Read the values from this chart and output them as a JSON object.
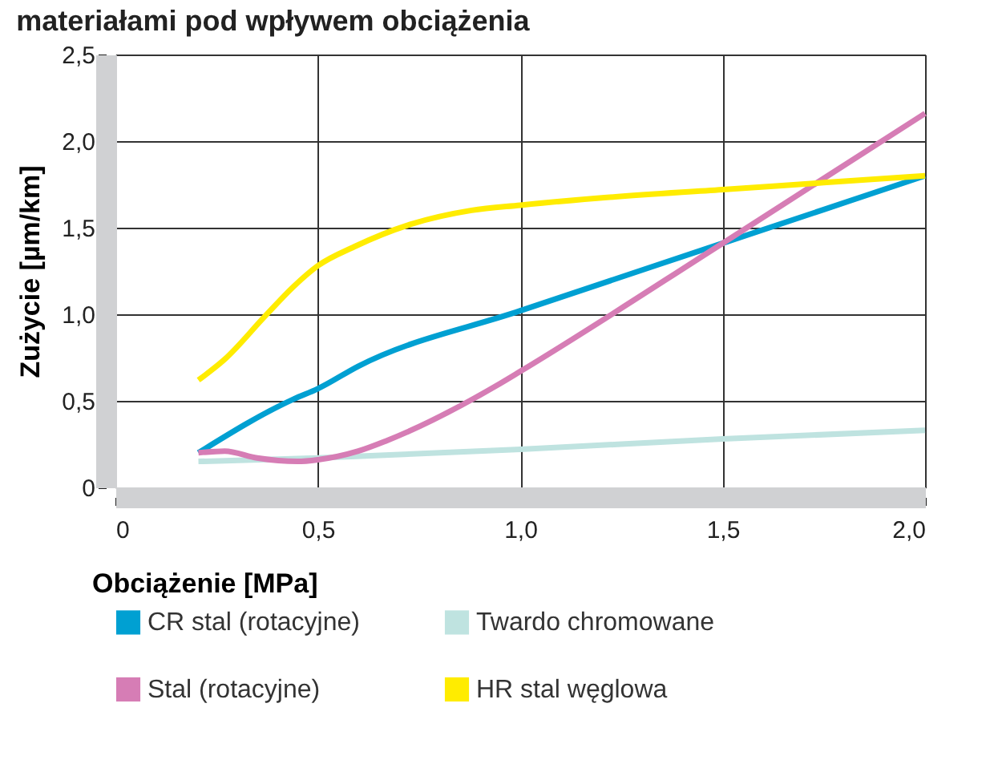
{
  "chart_data": {
    "type": "line",
    "title": "materiałami pod wpływem obciążenia",
    "xlabel": "Obciążenie [MPa]",
    "ylabel": "Zużycie [µm/km]",
    "xlim": [
      0,
      2.0
    ],
    "xticks": [
      {
        "value": 0,
        "label": "0"
      },
      {
        "value": 0.5,
        "label": "0,5"
      },
      {
        "value": 1.0,
        "label": "1,0"
      },
      {
        "value": 1.5,
        "label": "1,5"
      },
      {
        "value": 2.0,
        "label": "2,0"
      }
    ],
    "ylim": [
      0,
      2.5
    ],
    "yticks": [
      {
        "value": 0,
        "label": "0"
      },
      {
        "value": 0.5,
        "label": "0,5"
      },
      {
        "value": 1.0,
        "label": "1,0"
      },
      {
        "value": 1.5,
        "label": "1,5"
      },
      {
        "value": 2.0,
        "label": "2,0"
      },
      {
        "value": 2.5,
        "label": "2,5"
      }
    ],
    "grid": true,
    "legend": "bottom",
    "marker": "none",
    "line_style": "solid",
    "series": [
      {
        "name": "CR stal (rotacyjne)",
        "color": "#00a0d2",
        "x": [
          0.205,
          0.44,
          0.5,
          0.6,
          1.0,
          1.5,
          2.0
        ],
        "values": [
          0.2,
          0.51,
          0.57,
          0.7,
          1.02,
          1.41,
          1.8
        ]
      },
      {
        "name": "Twardo chromowane",
        "color": "#bfe3e0",
        "x": [
          0.205,
          0.5,
          1.0,
          1.5,
          2.0
        ],
        "values": [
          0.15,
          0.17,
          0.22,
          0.28,
          0.33
        ]
      },
      {
        "name": "Stal (rotacyjne)",
        "color": "#d67db5",
        "x": [
          0.205,
          0.27,
          0.35,
          0.45,
          0.5,
          0.6,
          0.67,
          0.95,
          1.0,
          1.5,
          2.0
        ],
        "values": [
          0.2,
          0.21,
          0.17,
          0.15,
          0.16,
          0.21,
          0.27,
          0.6,
          0.67,
          1.41,
          2.16
        ]
      },
      {
        "name": "HR stal węglowa",
        "color": "#ffec00",
        "x": [
          0.205,
          0.27,
          0.37,
          0.44,
          0.5,
          0.59,
          0.73,
          0.88,
          1.0,
          1.19,
          1.5,
          1.75,
          2.0
        ],
        "values": [
          0.62,
          0.74,
          0.99,
          1.16,
          1.28,
          1.39,
          1.52,
          1.6,
          1.63,
          1.67,
          1.72,
          1.76,
          1.8
        ]
      }
    ]
  }
}
